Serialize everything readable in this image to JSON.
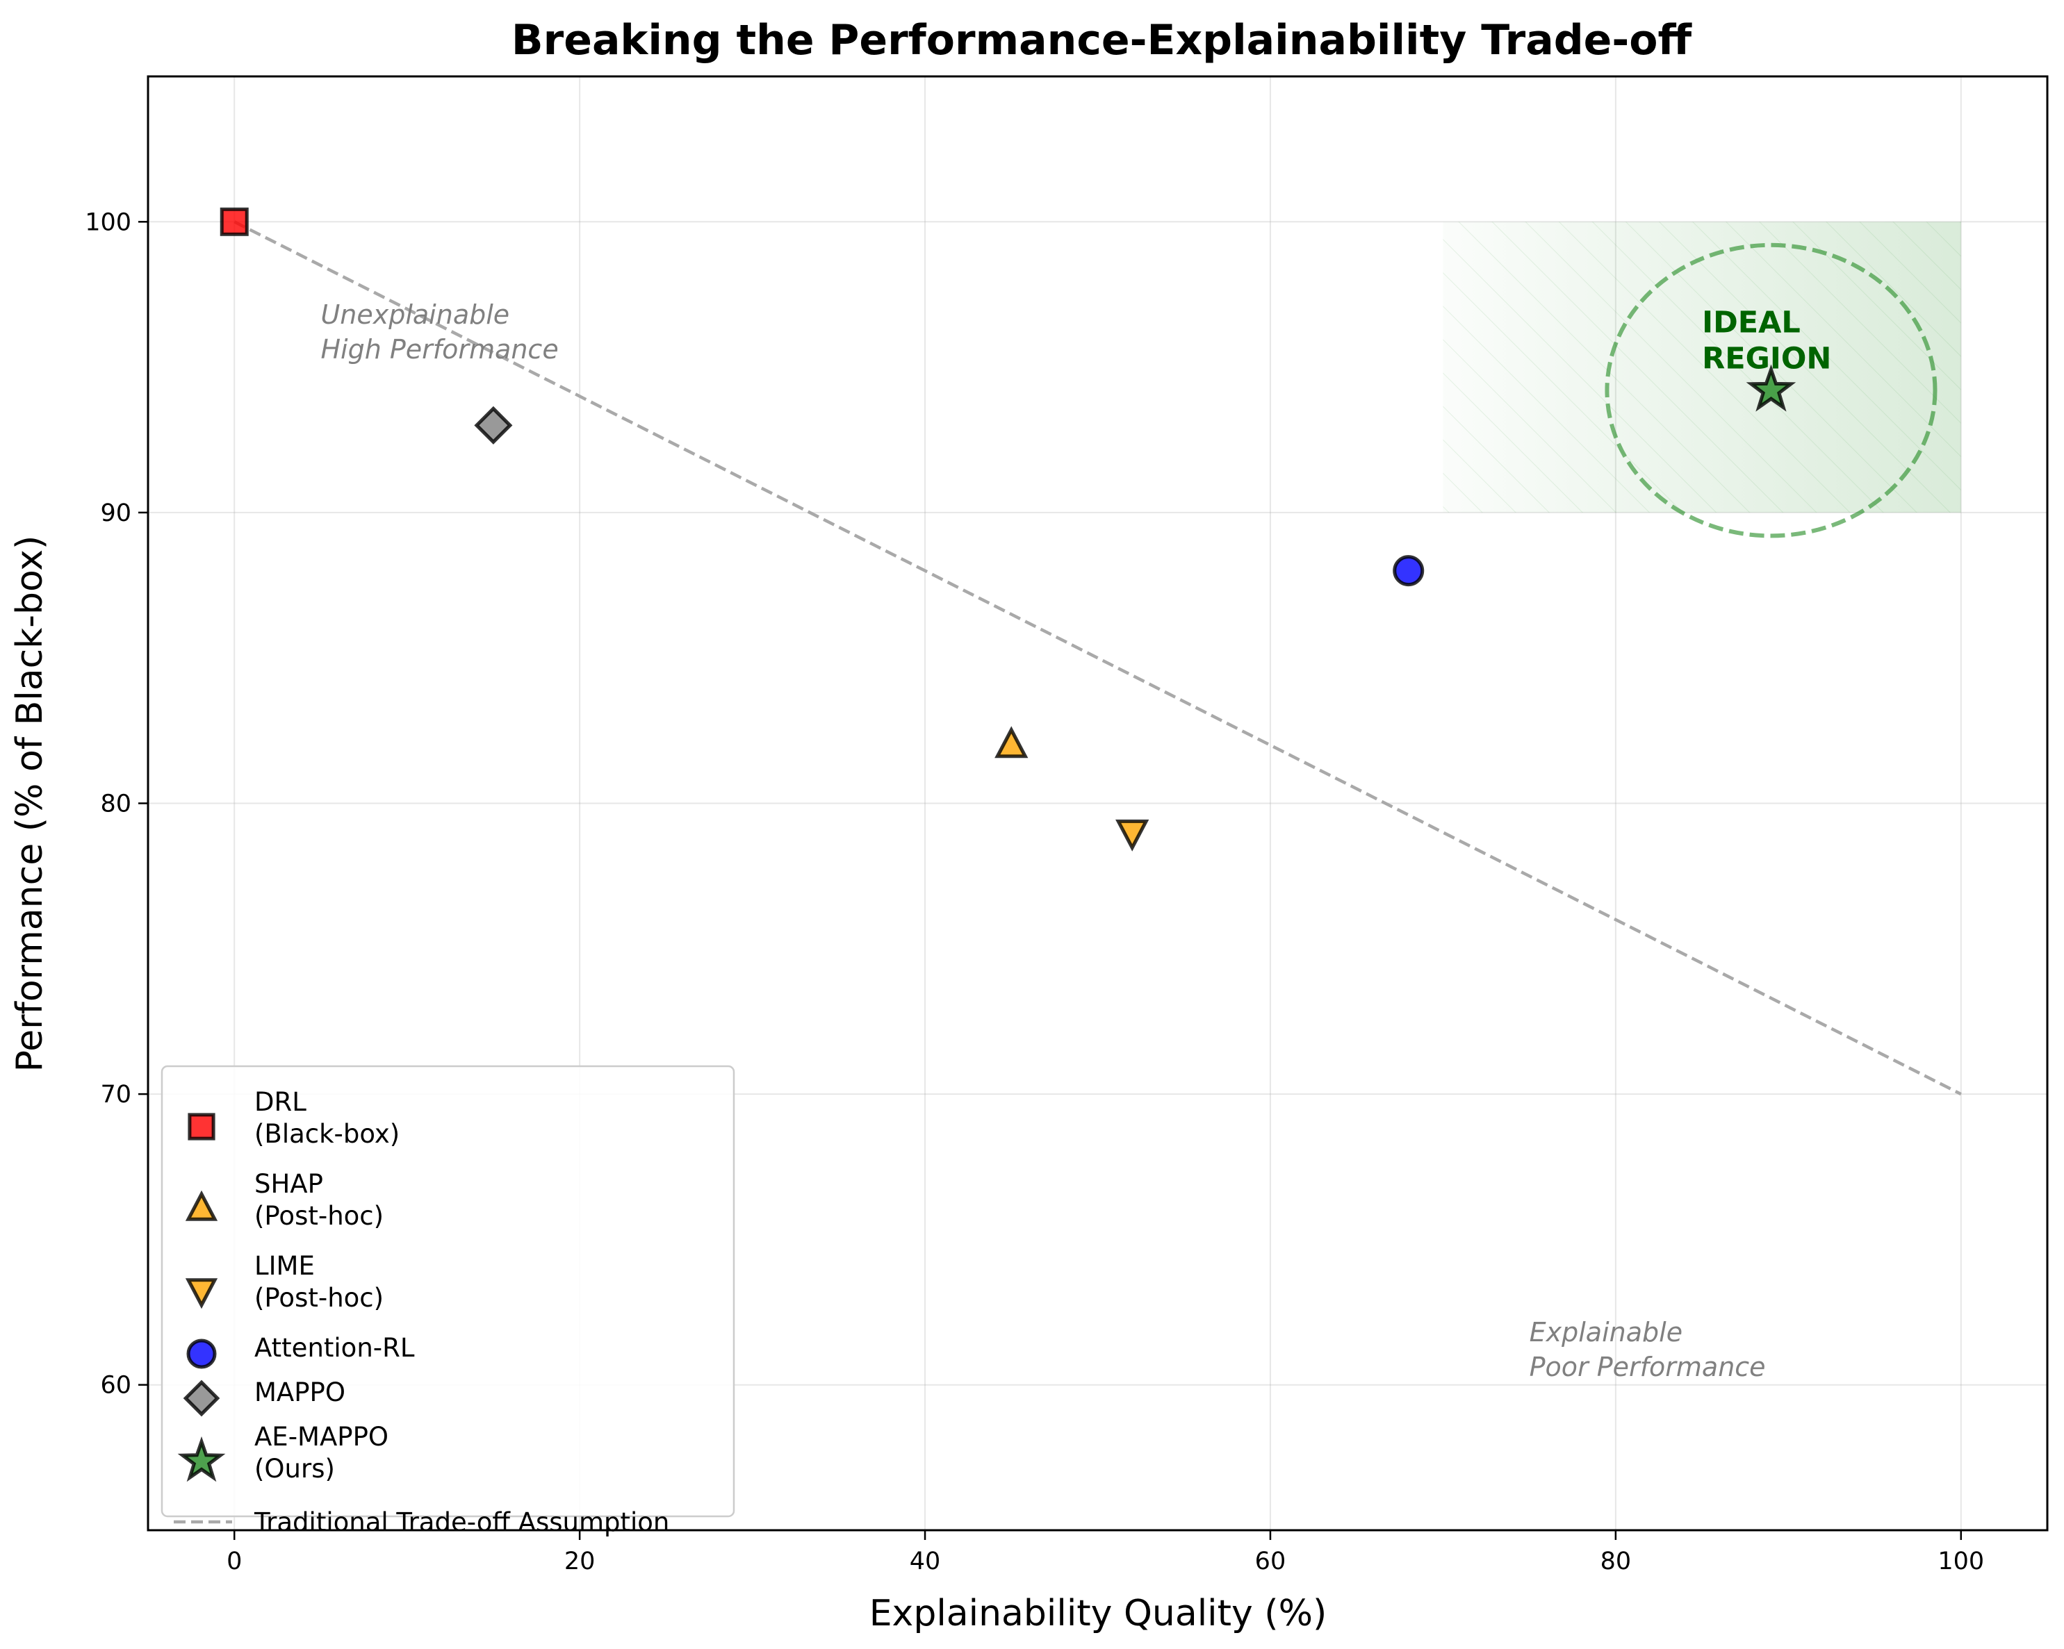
{
  "chart_data": {
    "type": "scatter",
    "title": "Breaking the Performance-Explainability Trade-off",
    "xlabel": "Explainability Quality (%)",
    "ylabel": "Performance (% of Black-box)",
    "xlim": [
      -5,
      105
    ],
    "ylim": [
      55,
      105
    ],
    "xticks": [
      0,
      20,
      40,
      60,
      80,
      100
    ],
    "yticks": [
      60,
      70,
      80,
      90,
      100
    ],
    "grid": true,
    "legend_position": "lower-left",
    "series": [
      {
        "name": "DRL\n(Black-box)",
        "x": 0,
        "y": 100,
        "marker": "square",
        "color": "#ff0000"
      },
      {
        "name": "SHAP\n(Post-hoc)",
        "x": 45,
        "y": 82,
        "marker": "triangle-up",
        "color": "#ffa500"
      },
      {
        "name": "LIME\n(Post-hoc)",
        "x": 52,
        "y": 79,
        "marker": "triangle-down",
        "color": "#ffa500"
      },
      {
        "name": "Attention-RL",
        "x": 68,
        "y": 88,
        "marker": "circle",
        "color": "#0000ff"
      },
      {
        "name": "MAPPO",
        "x": 15,
        "y": 93,
        "marker": "diamond",
        "color": "#808080"
      },
      {
        "name": "AE-MAPPO\n(Ours)",
        "x": 89,
        "y": 94.2,
        "marker": "star",
        "color": "#228b22"
      }
    ],
    "tradeoff_line": {
      "name": "Traditional Trade-off Assumption",
      "x": [
        0,
        100
      ],
      "y": [
        100,
        70
      ],
      "color": "#a9a9a9"
    },
    "ideal_region": {
      "x": [
        70,
        100
      ],
      "y": [
        90,
        100
      ],
      "color": "#228b22"
    },
    "ideal_ellipse": {
      "center": [
        89,
        94.2
      ],
      "width": 19,
      "height": 10,
      "color": "#228b22"
    },
    "annotations": [
      {
        "text": "Unexplainable\nHigh Performance",
        "x": 5,
        "y": 96.5
      },
      {
        "text": "Explainable\nPoor Performance",
        "x": 75,
        "y": 61.5
      },
      {
        "text": "IDEAL\nREGION",
        "x": 85,
        "y": 96.2
      }
    ]
  }
}
